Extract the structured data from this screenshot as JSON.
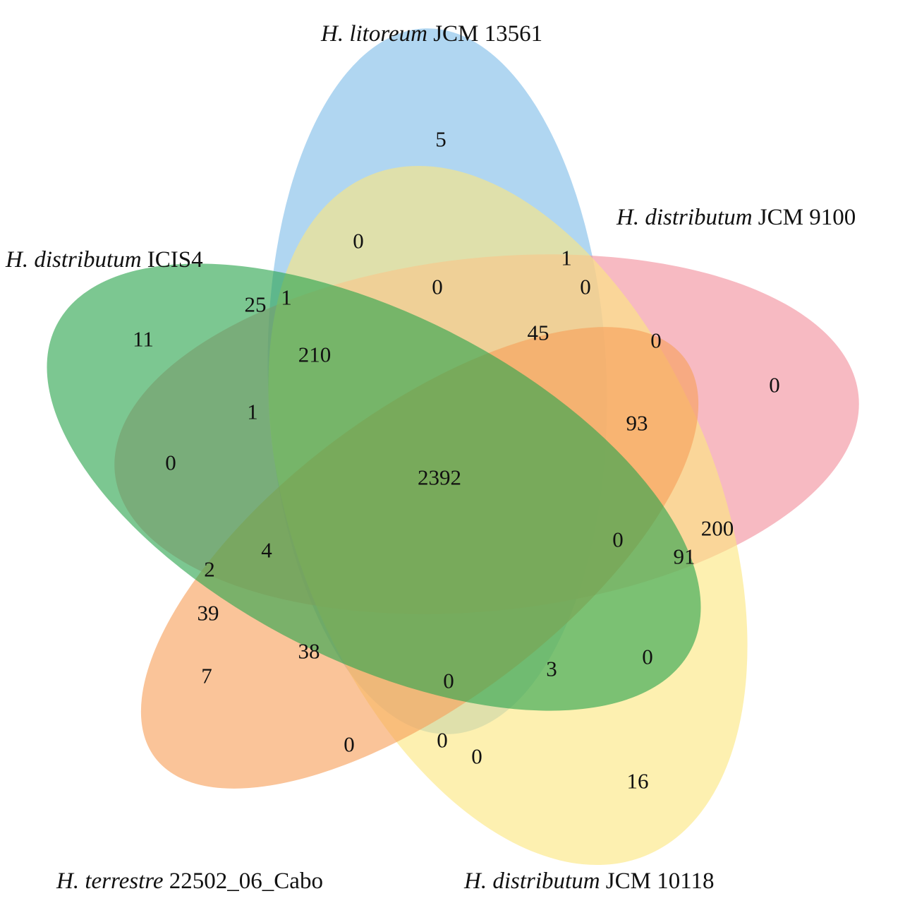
{
  "sets": [
    {
      "id": "litoreum",
      "species": "H. litoreum",
      "strain": "JCM 13561",
      "color": "#7fbde8"
    },
    {
      "id": "dist9100",
      "species": "H. distributum",
      "strain": "JCM 9100",
      "color": "#f2909c"
    },
    {
      "id": "dist10118",
      "species": "H. distributum",
      "strain": "JCM 10118",
      "color": "#fbe680"
    },
    {
      "id": "terrestre",
      "species": "H. terrestre",
      "strain": "22502_06_Cabo",
      "color": "#f79f5a"
    },
    {
      "id": "icis4",
      "species": "H. distributum",
      "strain": "ICIS4",
      "color": "#2ba44e"
    }
  ],
  "counts": [
    "5",
    "0",
    "1",
    "0",
    "0",
    "0",
    "0",
    "200",
    "91",
    "0",
    "0",
    "3",
    "0",
    "0",
    "0",
    "16",
    "0",
    "7",
    "38",
    "39",
    "2",
    "11",
    "25",
    "1",
    "210",
    "45",
    "93",
    "0",
    "4",
    "0",
    "1",
    "2392"
  ]
}
